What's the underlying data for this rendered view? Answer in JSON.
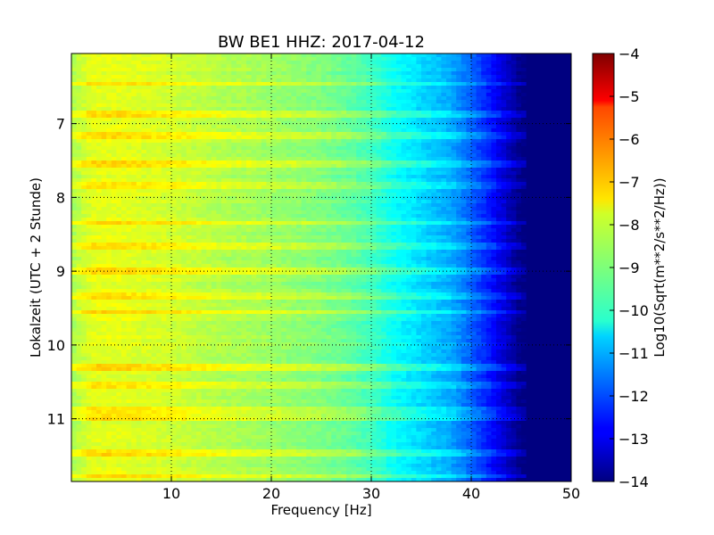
{
  "chart_data": {
    "type": "heatmap",
    "title": "BW BE1 HHZ: 2017-04-12",
    "xlabel": "Frequency [Hz]",
    "ylabel": "Lokalzeit (UTC + 2 Stunde)",
    "xlim": [
      0,
      50
    ],
    "ylim": [
      11.85,
      6.05
    ],
    "x_ticks": [
      10,
      20,
      30,
      40,
      50
    ],
    "y_ticks": [
      7,
      8,
      9,
      10,
      11
    ],
    "grid": true,
    "colorbar": {
      "label": "Log10(Sqrt(m**2/s**2/Hz))",
      "range": [
        -14,
        -4
      ],
      "ticks": [
        -4,
        -5,
        -6,
        -7,
        -8,
        -9,
        -10,
        -11,
        -12,
        -13,
        -14
      ],
      "colormap": "jet"
    },
    "frequency_profile": {
      "frequency_hz": [
        0,
        2,
        5,
        10,
        15,
        20,
        25,
        28,
        30,
        32,
        35,
        38,
        40,
        42,
        44,
        45,
        46,
        50
      ],
      "log10_amplitude": [
        -8.6,
        -8.0,
        -8.0,
        -8.2,
        -8.5,
        -8.7,
        -9.0,
        -9.3,
        -9.6,
        -10.1,
        -10.6,
        -11.1,
        -11.8,
        -12.6,
        -13.5,
        -14,
        -14,
        -14
      ]
    },
    "bright_bands_hours": [
      6.47,
      6.87,
      7.15,
      7.55,
      7.85,
      8.35,
      8.65,
      9.0,
      9.33,
      9.55,
      10.3,
      10.55,
      10.87,
      10.97,
      11.45,
      11.78
    ]
  }
}
